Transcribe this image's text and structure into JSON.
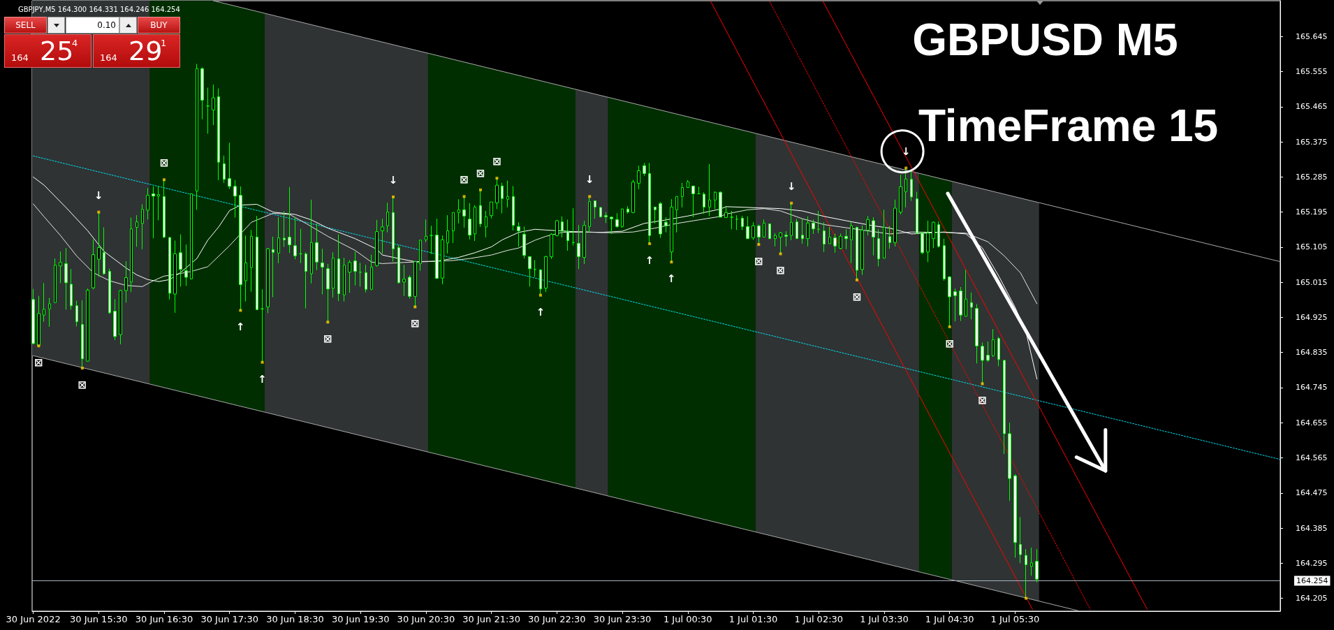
{
  "chart_data": {
    "type": "candlestick",
    "title": "GBPJPY,M5 164.300 164.331 164.246 164.254",
    "color": "#00ff00",
    "x": [
      "2022-06-30T14:30",
      "2022-06-30T14:35",
      "2022-06-30T14:40",
      "2022-06-30T14:45",
      "2022-06-30T14:50",
      "2022-06-30T14:55",
      "2022-06-30T15:00",
      "2022-06-30T15:05",
      "2022-06-30T15:10",
      "2022-06-30T15:15",
      "2022-06-30T15:20",
      "2022-06-30T15:25",
      "2022-06-30T15:30",
      "2022-06-30T15:35",
      "2022-06-30T15:40",
      "2022-06-30T15:45",
      "2022-06-30T15:50",
      "2022-06-30T15:55",
      "2022-06-30T16:00",
      "2022-06-30T16:05",
      "2022-06-30T16:10",
      "2022-06-30T16:15",
      "2022-06-30T16:20",
      "2022-06-30T16:25",
      "2022-06-30T16:30",
      "2022-06-30T16:35",
      "2022-06-30T16:40",
      "2022-06-30T16:45",
      "2022-06-30T16:50",
      "2022-06-30T16:55",
      "2022-06-30T17:00",
      "2022-06-30T17:05",
      "2022-06-30T17:10",
      "2022-06-30T17:15",
      "2022-06-30T17:20",
      "2022-06-30T17:25",
      "2022-06-30T17:30",
      "2022-06-30T17:35",
      "2022-06-30T17:40",
      "2022-06-30T17:45",
      "2022-06-30T17:50",
      "2022-06-30T17:55",
      "2022-06-30T18:00",
      "2022-06-30T18:05",
      "2022-06-30T18:10",
      "2022-06-30T18:15",
      "2022-06-30T18:20",
      "2022-06-30T18:25",
      "2022-06-30T18:30",
      "2022-06-30T18:35",
      "2022-06-30T18:40",
      "2022-06-30T18:45",
      "2022-06-30T18:50",
      "2022-06-30T18:55",
      "2022-06-30T19:00",
      "2022-06-30T19:05",
      "2022-06-30T19:10",
      "2022-06-30T19:15",
      "2022-06-30T19:20",
      "2022-06-30T19:25",
      "2022-06-30T19:30",
      "2022-06-30T19:35",
      "2022-06-30T19:40",
      "2022-06-30T19:45",
      "2022-06-30T19:50",
      "2022-06-30T19:55",
      "2022-06-30T20:00",
      "2022-06-30T20:05",
      "2022-06-30T20:10",
      "2022-06-30T20:15",
      "2022-06-30T20:20",
      "2022-06-30T20:25",
      "2022-06-30T20:30",
      "2022-06-30T20:35",
      "2022-06-30T20:40",
      "2022-06-30T20:45",
      "2022-06-30T20:50",
      "2022-06-30T20:55",
      "2022-06-30T21:00",
      "2022-06-30T21:05",
      "2022-06-30T21:10",
      "2022-06-30T21:15",
      "2022-06-30T21:20",
      "2022-06-30T21:25",
      "2022-06-30T21:30",
      "2022-06-30T21:35",
      "2022-06-30T21:40",
      "2022-06-30T21:45",
      "2022-06-30T21:50",
      "2022-06-30T21:55",
      "2022-06-30T22:00",
      "2022-06-30T22:05",
      "2022-06-30T22:10",
      "2022-06-30T22:15",
      "2022-06-30T22:20",
      "2022-06-30T22:25",
      "2022-06-30T22:30",
      "2022-06-30T22:35",
      "2022-06-30T22:40",
      "2022-06-30T22:45",
      "2022-06-30T22:50",
      "2022-06-30T22:55",
      "2022-06-30T23:00",
      "2022-06-30T23:05",
      "2022-06-30T23:10",
      "2022-06-30T23:15",
      "2022-06-30T23:20",
      "2022-06-30T23:25",
      "2022-06-30T23:30",
      "2022-06-30T23:35",
      "2022-06-30T23:40",
      "2022-06-30T23:45",
      "2022-06-30T23:50",
      "2022-06-30T23:55",
      "2022-07-01T00:00",
      "2022-07-01T00:05",
      "2022-07-01T00:10",
      "2022-07-01T00:15",
      "2022-07-01T00:20",
      "2022-07-01T00:25",
      "2022-07-01T00:30",
      "2022-07-01T00:35",
      "2022-07-01T00:40",
      "2022-07-01T00:45",
      "2022-07-01T00:50",
      "2022-07-01T00:55",
      "2022-07-01T01:00",
      "2022-07-01T01:05",
      "2022-07-01T01:10",
      "2022-07-01T01:15",
      "2022-07-01T01:20",
      "2022-07-01T01:25",
      "2022-07-01T01:30",
      "2022-07-01T01:35",
      "2022-07-01T01:40",
      "2022-07-01T01:45",
      "2022-07-01T01:50",
      "2022-07-01T01:55",
      "2022-07-01T02:00",
      "2022-07-01T02:05",
      "2022-07-01T02:10",
      "2022-07-01T02:15",
      "2022-07-01T02:20",
      "2022-07-01T02:25",
      "2022-07-01T02:30",
      "2022-07-01T02:35",
      "2022-07-01T02:40",
      "2022-07-01T02:45",
      "2022-07-01T02:50",
      "2022-07-01T02:55",
      "2022-07-01T03:00",
      "2022-07-01T03:05",
      "2022-07-01T03:10",
      "2022-07-01T03:15",
      "2022-07-01T03:20",
      "2022-07-01T03:25",
      "2022-07-01T03:30",
      "2022-07-01T03:35",
      "2022-07-01T03:40",
      "2022-07-01T03:45",
      "2022-07-01T03:50",
      "2022-07-01T03:55",
      "2022-07-01T04:00",
      "2022-07-01T04:05",
      "2022-07-01T04:10",
      "2022-07-01T04:15",
      "2022-07-01T04:20",
      "2022-07-01T04:25",
      "2022-07-01T04:30",
      "2022-07-01T04:35",
      "2022-07-01T04:40",
      "2022-07-01T04:45",
      "2022-07-01T04:50",
      "2022-07-01T04:55",
      "2022-07-01T05:00",
      "2022-07-01T05:05",
      "2022-07-01T05:10",
      "2022-07-01T05:15",
      "2022-07-01T05:20",
      "2022-07-01T05:25",
      "2022-07-01T05:30",
      "2022-07-01T05:35",
      "2022-07-01T05:40",
      "2022-07-01T05:45",
      "2022-07-01T05:50"
    ],
    "ohlc": [
      [
        164.971,
        164.998,
        164.856,
        164.858
      ],
      [
        164.854,
        164.98,
        164.852,
        164.935
      ],
      [
        164.931,
        165.013,
        164.914,
        164.946
      ],
      [
        164.947,
        164.975,
        164.901,
        164.96
      ],
      [
        164.963,
        165.076,
        164.962,
        165.059
      ],
      [
        165.057,
        165.094,
        165.013,
        165.066
      ],
      [
        165.063,
        165.103,
        164.945,
        165.014
      ],
      [
        165.01,
        165.049,
        164.945,
        164.955
      ],
      [
        164.955,
        164.968,
        164.902,
        164.914
      ],
      [
        164.907,
        164.969,
        164.795,
        164.819
      ],
      [
        164.813,
        164.999,
        164.812,
        164.995
      ],
      [
        165.001,
        165.125,
        164.997,
        165.086
      ],
      [
        165.074,
        165.195,
        165.029,
        165.104
      ],
      [
        165.091,
        165.156,
        165.034,
        165.037
      ],
      [
        165.043,
        165.05,
        164.934,
        164.937
      ],
      [
        164.941,
        164.972,
        164.867,
        164.876
      ],
      [
        164.881,
        164.996,
        164.856,
        164.994
      ],
      [
        164.994,
        165.069,
        164.963,
        165.027
      ],
      [
        165.016,
        165.181,
        164.99,
        165.152
      ],
      [
        165.156,
        165.187,
        165.106,
        165.17
      ],
      [
        165.166,
        165.215,
        165.1,
        165.202
      ],
      [
        165.2,
        165.257,
        165.176,
        165.238
      ],
      [
        165.242,
        165.261,
        165.128,
        165.236
      ],
      [
        165.236,
        165.261,
        165.174,
        165.24
      ],
      [
        165.235,
        165.278,
        165.128,
        165.131
      ],
      [
        165.13,
        165.13,
        164.971,
        164.987
      ],
      [
        164.985,
        165.122,
        164.937,
        165.088
      ],
      [
        165.091,
        165.138,
        165.004,
        165.048
      ],
      [
        165.045,
        165.112,
        165.006,
        165.028
      ],
      [
        165.024,
        165.243,
        165.022,
        165.242
      ],
      [
        165.249,
        165.575,
        165.201,
        165.563
      ],
      [
        165.563,
        165.566,
        165.433,
        165.482
      ],
      [
        165.467,
        165.514,
        165.396,
        165.467
      ],
      [
        165.457,
        165.522,
        165.418,
        165.488
      ],
      [
        165.491,
        165.512,
        165.277,
        165.323
      ],
      [
        165.319,
        165.34,
        165.27,
        165.279
      ],
      [
        165.281,
        165.373,
        165.254,
        165.261
      ],
      [
        165.261,
        165.277,
        165.181,
        165.236
      ],
      [
        165.238,
        165.261,
        164.943,
        165.009
      ],
      [
        165.019,
        165.135,
        164.966,
        165.065
      ],
      [
        165.053,
        165.149,
        164.991,
        165.133
      ],
      [
        165.131,
        165.185,
        164.945,
        164.945
      ],
      [
        164.947,
        164.997,
        164.81,
        164.947
      ],
      [
        164.952,
        165.103,
        164.936,
        165.101
      ],
      [
        165.099,
        165.132,
        164.977,
        165.092
      ],
      [
        165.09,
        165.182,
        165.064,
        165.129
      ],
      [
        165.128,
        165.197,
        165.106,
        165.124
      ],
      [
        165.131,
        165.259,
        165.09,
        165.111
      ],
      [
        165.109,
        165.182,
        165.074,
        165.083
      ],
      [
        165.088,
        165.152,
        165.064,
        165.088
      ],
      [
        165.088,
        165.092,
        164.948,
        165.043
      ],
      [
        165.037,
        165.227,
        165.012,
        165.117
      ],
      [
        165.117,
        165.166,
        165.046,
        165.067
      ],
      [
        165.065,
        165.101,
        164.984,
        165.054
      ],
      [
        165.05,
        165.062,
        164.913,
        164.998
      ],
      [
        165.0,
        165.092,
        164.976,
        165.077
      ],
      [
        165.075,
        165.138,
        164.967,
        164.986
      ],
      [
        164.983,
        165.078,
        164.966,
        165.059
      ],
      [
        165.041,
        165.072,
        164.988,
        165.066
      ],
      [
        165.07,
        165.094,
        165.007,
        165.043
      ],
      [
        165.041,
        165.065,
        165.004,
        165.041
      ],
      [
        165.04,
        165.06,
        164.989,
        164.997
      ],
      [
        164.997,
        165.086,
        164.995,
        165.054
      ],
      [
        165.058,
        165.175,
        165.055,
        165.145
      ],
      [
        165.147,
        165.178,
        165.088,
        165.157
      ],
      [
        165.16,
        165.219,
        165.143,
        165.195
      ],
      [
        165.194,
        165.234,
        165.068,
        165.101
      ],
      [
        165.104,
        165.11,
        165.012,
        165.014
      ],
      [
        165.016,
        165.06,
        164.98,
        165.023
      ],
      [
        165.028,
        165.033,
        164.973,
        164.979
      ],
      [
        164.979,
        165.07,
        164.952,
        165.068
      ],
      [
        165.063,
        165.124,
        165.045,
        165.123
      ],
      [
        165.124,
        165.176,
        165.118,
        165.133
      ],
      [
        165.135,
        165.16,
        165.087,
        165.135
      ],
      [
        165.136,
        165.178,
        165.025,
        165.025
      ],
      [
        165.026,
        165.135,
        165.01,
        165.124
      ],
      [
        165.116,
        165.187,
        165.089,
        165.147
      ],
      [
        165.147,
        165.194,
        165.116,
        165.194
      ],
      [
        165.194,
        165.228,
        165.166,
        165.201
      ],
      [
        165.201,
        165.235,
        165.155,
        165.185
      ],
      [
        165.177,
        165.218,
        165.125,
        165.136
      ],
      [
        165.139,
        165.213,
        165.121,
        165.208
      ],
      [
        165.212,
        165.252,
        165.157,
        165.165
      ],
      [
        165.157,
        165.198,
        165.13,
        165.183
      ],
      [
        165.186,
        165.221,
        165.179,
        165.221
      ],
      [
        165.219,
        165.282,
        165.203,
        165.264
      ],
      [
        165.262,
        165.27,
        165.192,
        165.23
      ],
      [
        165.228,
        165.276,
        165.207,
        165.235
      ],
      [
        165.235,
        165.262,
        165.148,
        165.161
      ],
      [
        165.158,
        165.169,
        165.106,
        165.147
      ],
      [
        165.138,
        165.158,
        165.076,
        165.084
      ],
      [
        165.081,
        165.081,
        165.004,
        165.05
      ],
      [
        165.048,
        165.072,
        165.029,
        165.048
      ],
      [
        165.047,
        165.049,
        164.982,
        164.998
      ],
      [
        165.0,
        165.083,
        164.99,
        165.081
      ],
      [
        165.081,
        165.141,
        165.075,
        165.138
      ],
      [
        165.135,
        165.175,
        165.133,
        165.173
      ],
      [
        165.17,
        165.184,
        165.13,
        165.147
      ],
      [
        165.146,
        165.176,
        165.096,
        165.122
      ],
      [
        165.117,
        165.205,
        165.109,
        165.117
      ],
      [
        165.115,
        165.162,
        165.049,
        165.081
      ],
      [
        165.079,
        165.173,
        165.062,
        165.161
      ],
      [
        165.158,
        165.235,
        165.142,
        165.222
      ],
      [
        165.224,
        165.224,
        165.178,
        165.208
      ],
      [
        165.207,
        165.207,
        165.181,
        165.183
      ],
      [
        165.186,
        165.195,
        165.167,
        165.183
      ],
      [
        165.182,
        165.184,
        165.139,
        165.178
      ],
      [
        165.176,
        165.192,
        165.155,
        165.158
      ],
      [
        165.158,
        165.204,
        165.155,
        165.203
      ],
      [
        165.203,
        165.21,
        165.191,
        165.195
      ],
      [
        165.194,
        165.278,
        165.192,
        165.272
      ],
      [
        165.269,
        165.314,
        165.254,
        165.301
      ],
      [
        165.314,
        165.321,
        165.288,
        165.294
      ],
      [
        165.294,
        165.321,
        165.114,
        165.135
      ],
      [
        165.208,
        165.208,
        165.166,
        165.201
      ],
      [
        165.217,
        165.221,
        165.129,
        165.139
      ],
      [
        165.169,
        165.182,
        165.143,
        165.16
      ],
      [
        165.093,
        165.228,
        165.067,
        165.208
      ],
      [
        165.201,
        165.235,
        165.143,
        165.235
      ],
      [
        165.235,
        165.27,
        165.207,
        165.258
      ],
      [
        165.258,
        165.277,
        165.258,
        165.273
      ],
      [
        165.262,
        165.262,
        165.182,
        165.242
      ],
      [
        165.242,
        165.26,
        165.242,
        165.242
      ],
      [
        165.241,
        165.246,
        165.191,
        165.208
      ],
      [
        165.208,
        165.318,
        165.185,
        165.226
      ],
      [
        165.226,
        165.248,
        165.203,
        165.246
      ],
      [
        165.246,
        165.248,
        165.182,
        165.182
      ],
      [
        165.181,
        165.209,
        165.181,
        165.194
      ],
      [
        165.182,
        165.198,
        165.151,
        165.182
      ],
      [
        165.177,
        165.187,
        165.149,
        165.177
      ],
      [
        165.179,
        165.185,
        165.149,
        165.158
      ],
      [
        165.158,
        165.184,
        165.127,
        165.127
      ],
      [
        165.129,
        165.169,
        165.124,
        165.16
      ],
      [
        165.16,
        165.163,
        165.112,
        165.131
      ],
      [
        165.131,
        165.176,
        165.13,
        165.167
      ],
      [
        165.165,
        165.165,
        165.126,
        165.127
      ],
      [
        165.127,
        165.141,
        165.107,
        165.135
      ],
      [
        165.131,
        165.144,
        165.088,
        165.142
      ],
      [
        165.136,
        165.146,
        165.107,
        165.133
      ],
      [
        165.135,
        165.218,
        165.123,
        165.169
      ],
      [
        165.17,
        165.178,
        165.127,
        165.127
      ],
      [
        165.136,
        165.178,
        165.114,
        165.127
      ],
      [
        165.127,
        165.184,
        165.107,
        165.167
      ],
      [
        165.167,
        165.176,
        165.139,
        165.152
      ],
      [
        165.151,
        165.198,
        165.141,
        165.151
      ],
      [
        165.147,
        165.169,
        165.093,
        165.113
      ],
      [
        165.114,
        165.157,
        165.114,
        165.131
      ],
      [
        165.129,
        165.14,
        165.091,
        165.108
      ],
      [
        165.102,
        165.14,
        165.1,
        165.133
      ],
      [
        165.133,
        165.151,
        165.1,
        165.127
      ],
      [
        165.124,
        165.17,
        165.064,
        165.16
      ],
      [
        165.156,
        165.158,
        165.021,
        165.046
      ],
      [
        165.048,
        165.161,
        165.034,
        165.149
      ],
      [
        165.149,
        165.185,
        165.135,
        165.176
      ],
      [
        165.173,
        165.182,
        165.084,
        165.131
      ],
      [
        165.127,
        165.151,
        165.056,
        165.075
      ],
      [
        165.077,
        165.201,
        165.076,
        165.156
      ],
      [
        165.132,
        165.159,
        165.101,
        165.117
      ],
      [
        165.117,
        165.227,
        165.107,
        165.205
      ],
      [
        165.195,
        165.291,
        165.189,
        165.26
      ],
      [
        165.247,
        165.308,
        165.207,
        165.28
      ],
      [
        165.279,
        165.303,
        165.224,
        165.234
      ],
      [
        165.229,
        165.247,
        165.139,
        165.141
      ],
      [
        165.141,
        165.144,
        165.087,
        165.091
      ],
      [
        165.093,
        165.173,
        165.067,
        165.141
      ],
      [
        165.127,
        165.171,
        165.103,
        165.169
      ],
      [
        165.163,
        165.171,
        165.104,
        165.107
      ],
      [
        165.109,
        165.127,
        165.019,
        165.024
      ],
      [
        165.029,
        165.031,
        164.901,
        164.978
      ],
      [
        164.991,
        164.999,
        164.915,
        164.981
      ],
      [
        164.993,
        165.003,
        164.916,
        164.931
      ],
      [
        164.928,
        165.047,
        164.927,
        164.972
      ],
      [
        164.963,
        164.989,
        164.92,
        164.951
      ],
      [
        164.948,
        164.959,
        164.807,
        164.852
      ],
      [
        164.851,
        164.861,
        164.755,
        164.815
      ],
      [
        164.828,
        164.863,
        164.811,
        164.815
      ],
      [
        164.827,
        164.895,
        164.824,
        164.868
      ],
      [
        164.871,
        164.875,
        164.8,
        164.817
      ],
      [
        164.815,
        164.815,
        164.575,
        164.627
      ],
      [
        164.627,
        164.655,
        164.455,
        164.512
      ],
      [
        164.519,
        164.523,
        164.309,
        164.348
      ],
      [
        164.343,
        164.413,
        164.295,
        164.317
      ],
      [
        164.315,
        164.331,
        164.205,
        164.291
      ],
      [
        164.287,
        164.335,
        164.263,
        164.296
      ],
      [
        164.3,
        164.331,
        164.246,
        164.254
      ]
    ],
    "series": [
      {
        "type": "line",
        "color": "#a9a9a9",
        "x": [
          "2022-06-30T17:15",
          "2022-07-01T09:33"
        ],
        "values": [
          165.737,
          165.068
        ]
      },
      {
        "type": "line",
        "color": "#a9a9a9",
        "x": [
          "2022-06-30T14:30",
          "2022-07-01T06:28"
        ],
        "values": [
          164.827,
          164.173
        ]
      },
      {
        "type": "line",
        "color": "#00e0f0",
        "line_style": "dotted",
        "x": [
          "2022-06-30T14:30",
          "2022-07-01T09:33"
        ],
        "values": [
          165.339,
          164.561
        ]
      },
      {
        "type": "line",
        "color": "#ff0000",
        "x": [
          "2022-07-01T00:51",
          "2022-07-01T05:46"
        ],
        "values": [
          165.735,
          164.176
        ]
      },
      {
        "type": "line",
        "color": "#ff0000",
        "line_style": "dotted",
        "x": [
          "2022-07-01T01:45",
          "2022-07-01T06:39"
        ],
        "values": [
          165.735,
          164.176
        ]
      },
      {
        "type": "line",
        "color": "#ff0000",
        "x": [
          "2022-07-01T02:34",
          "2022-07-01T07:31"
        ],
        "values": [
          165.735,
          164.177
        ]
      },
      {
        "type": "line",
        "color": "#ffffff",
        "x": [
          "2022-06-30T14:30",
          "2022-06-30T14:40",
          "2022-06-30T15:00",
          "2022-06-30T15:20",
          "2022-06-30T15:35",
          "2022-06-30T15:55",
          "2022-06-30T16:05",
          "2022-06-30T16:15",
          "2022-06-30T16:25",
          "2022-06-30T16:35",
          "2022-06-30T16:45",
          "2022-06-30T17:00",
          "2022-06-30T17:10",
          "2022-06-30T17:20",
          "2022-06-30T17:30",
          "2022-06-30T17:40",
          "2022-06-30T17:55",
          "2022-06-30T18:10",
          "2022-06-30T18:30",
          "2022-06-30T18:45",
          "2022-06-30T19:00",
          "2022-06-30T19:25",
          "2022-06-30T19:45",
          "2022-06-30T19:50",
          "2022-06-30T20:05",
          "2022-06-30T20:20",
          "2022-06-30T20:40",
          "2022-06-30T21:00",
          "2022-06-30T21:15",
          "2022-06-30T21:30",
          "2022-06-30T21:40",
          "2022-06-30T21:55",
          "2022-06-30T22:10",
          "2022-06-30T22:20",
          "2022-06-30T22:45",
          "2022-06-30T23:10",
          "2022-06-30T23:30",
          "2022-06-30T23:50",
          "2022-07-01T00:10",
          "2022-07-01T00:30",
          "2022-07-01T01:00",
          "2022-07-01T01:05",
          "2022-07-01T01:35",
          "2022-07-01T01:55",
          "2022-07-01T02:15",
          "2022-07-01T02:35",
          "2022-07-01T02:55",
          "2022-07-01T03:20",
          "2022-07-01T03:35",
          "2022-07-01T03:55",
          "2022-07-01T04:25",
          "2022-07-01T04:45",
          "2022-07-01T05:00",
          "2022-07-01T05:15",
          "2022-07-01T05:30",
          "2022-07-01T05:40",
          "2022-07-01T05:50"
        ],
        "values": [
          165.285,
          165.264,
          165.207,
          165.147,
          165.094,
          165.052,
          165.034,
          165.022,
          165.017,
          165.022,
          165.04,
          165.076,
          165.123,
          165.157,
          165.199,
          165.213,
          165.215,
          165.195,
          165.189,
          165.175,
          165.154,
          165.127,
          165.1,
          165.085,
          165.076,
          165.068,
          165.069,
          165.079,
          165.091,
          165.106,
          165.124,
          165.143,
          165.151,
          165.149,
          165.145,
          165.143,
          165.146,
          165.166,
          165.175,
          165.185,
          165.203,
          165.209,
          165.206,
          165.204,
          165.198,
          165.184,
          165.173,
          165.16,
          165.154,
          165.139,
          165.144,
          165.139,
          165.103,
          165.031,
          164.951,
          164.887,
          164.767
        ]
      },
      {
        "type": "line",
        "color": "#e6e6e6",
        "x": [
          "2022-06-30T14:30",
          "2022-06-30T14:40",
          "2022-06-30T14:55",
          "2022-06-30T15:10",
          "2022-06-30T15:25",
          "2022-06-30T15:40",
          "2022-06-30T15:55",
          "2022-06-30T16:10",
          "2022-06-30T16:20",
          "2022-06-30T16:30",
          "2022-06-30T16:40",
          "2022-06-30T16:55",
          "2022-06-30T17:10",
          "2022-06-30T17:30",
          "2022-06-30T17:40",
          "2022-06-30T17:50",
          "2022-06-30T18:10",
          "2022-06-30T18:25",
          "2022-06-30T18:40",
          "2022-06-30T19:00",
          "2022-06-30T19:25",
          "2022-06-30T19:40",
          "2022-06-30T19:50",
          "2022-06-30T20:10",
          "2022-06-30T20:30",
          "2022-06-30T20:55",
          "2022-06-30T21:10",
          "2022-06-30T21:30",
          "2022-06-30T21:45",
          "2022-06-30T21:55",
          "2022-06-30T22:10",
          "2022-06-30T22:20",
          "2022-06-30T22:35",
          "2022-06-30T22:55",
          "2022-06-30T23:20",
          "2022-06-30T23:40",
          "2022-07-01T00:00",
          "2022-07-01T00:20",
          "2022-07-01T00:40",
          "2022-07-01T01:00",
          "2022-07-01T01:05",
          "2022-07-01T01:25",
          "2022-07-01T01:40",
          "2022-07-01T01:55",
          "2022-07-01T02:15",
          "2022-07-01T02:35",
          "2022-07-01T02:55",
          "2022-07-01T03:20",
          "2022-07-01T03:35",
          "2022-07-01T03:55",
          "2022-07-01T04:25",
          "2022-07-01T04:45",
          "2022-07-01T05:05",
          "2022-07-01T05:20",
          "2022-07-01T05:35",
          "2022-07-01T05:50"
        ],
        "values": [
          165.216,
          165.183,
          165.135,
          165.082,
          165.04,
          165.019,
          165.007,
          165.004,
          165.019,
          165.031,
          165.035,
          165.043,
          165.055,
          165.109,
          165.139,
          165.169,
          165.192,
          165.189,
          165.166,
          165.133,
          165.097,
          165.067,
          165.063,
          165.066,
          165.068,
          165.071,
          165.076,
          165.085,
          165.097,
          165.103,
          165.123,
          165.133,
          165.143,
          165.144,
          165.142,
          165.144,
          165.154,
          165.166,
          165.175,
          165.184,
          165.19,
          165.201,
          165.204,
          165.198,
          165.178,
          165.163,
          165.155,
          165.145,
          165.139,
          165.144,
          165.143,
          165.141,
          165.119,
          165.083,
          165.039,
          164.96
        ]
      },
      {
        "type": "scatter",
        "color": "#ffcc00",
        "marker": "square",
        "x": [
          "2022-06-30T14:35",
          "2022-06-30T15:15",
          "2022-06-30T15:30",
          "2022-06-30T16:30",
          "2022-06-30T17:40",
          "2022-06-30T18:00",
          "2022-06-30T19:00",
          "2022-06-30T20:00",
          "2022-06-30T20:20",
          "2022-06-30T21:05",
          "2022-06-30T21:20",
          "2022-06-30T21:35",
          "2022-06-30T22:15",
          "2022-06-30T23:00",
          "2022-06-30T23:55",
          "2022-07-01T00:15",
          "2022-07-01T01:35",
          "2022-07-01T01:55",
          "2022-07-01T02:05",
          "2022-07-01T03:05",
          "2022-07-01T03:50",
          "2022-07-01T04:30",
          "2022-07-01T05:00",
          "2022-07-01T05:40"
        ],
        "values": [
          164.852,
          164.795,
          165.195,
          165.278,
          164.943,
          164.81,
          164.913,
          165.234,
          164.952,
          165.235,
          165.252,
          165.282,
          164.982,
          165.235,
          165.114,
          165.067,
          165.112,
          165.088,
          165.218,
          165.021,
          165.308,
          164.901,
          164.755,
          164.205
        ]
      }
    ],
    "xlim": [
      "2022-06-30T14:29",
      "2022-07-01T09:33"
    ],
    "xticks": [
      {
        "value": "2022-06-30T14:30",
        "label": "30 Jun 2022"
      },
      {
        "value": "2022-06-30T15:30",
        "label": "30 Jun 15:30"
      },
      {
        "value": "2022-06-30T16:30",
        "label": "30 Jun 16:30"
      },
      {
        "value": "2022-06-30T17:30",
        "label": "30 Jun 17:30"
      },
      {
        "value": "2022-06-30T18:30",
        "label": "30 Jun 18:30"
      },
      {
        "value": "2022-06-30T19:30",
        "label": "30 Jun 19:30"
      },
      {
        "value": "2022-06-30T20:30",
        "label": "30 Jun 20:30"
      },
      {
        "value": "2022-06-30T21:30",
        "label": "30 Jun 21:30"
      },
      {
        "value": "2022-06-30T22:30",
        "label": "30 Jun 22:30"
      },
      {
        "value": "2022-06-30T23:30",
        "label": "30 Jun 23:30"
      },
      {
        "value": "2022-07-01T00:30",
        "label": "1 Jul 00:30"
      },
      {
        "value": "2022-07-01T01:30",
        "label": "1 Jul 01:30"
      },
      {
        "value": "2022-07-01T02:30",
        "label": "1 Jul 02:30"
      },
      {
        "value": "2022-07-01T03:30",
        "label": "1 Jul 03:30"
      },
      {
        "value": "2022-07-01T04:30",
        "label": "1 Jul 04:30"
      },
      {
        "value": "2022-07-01T05:30",
        "label": "1 Jul 05:30"
      }
    ],
    "ylim": [
      164.172,
      165.737
    ],
    "yticks": [
      164.205,
      164.295,
      164.385,
      164.475,
      164.565,
      164.655,
      164.745,
      164.835,
      164.925,
      165.015,
      165.105,
      165.195,
      165.285,
      165.375,
      165.465,
      165.555,
      165.645
    ],
    "ref_lines": [
      {
        "axis": "y",
        "value": 164.254,
        "label": "164.254",
        "color": "#a7b3c0"
      }
    ],
    "bands": [
      {
        "axis": "x",
        "from": "2022-06-30T14:29",
        "to": "2022-06-30T16:17",
        "color": "#2f3333"
      },
      {
        "axis": "x",
        "from": "2022-06-30T16:17",
        "to": "2022-06-30T18:02",
        "color": "#002e00"
      },
      {
        "axis": "x",
        "from": "2022-06-30T18:02",
        "to": "2022-06-30T20:32",
        "color": "#2f3333"
      },
      {
        "axis": "x",
        "from": "2022-06-30T20:32",
        "to": "2022-06-30T22:47",
        "color": "#002e00"
      },
      {
        "axis": "x",
        "from": "2022-06-30T22:47",
        "to": "2022-06-30T23:17",
        "color": "#2f3333"
      },
      {
        "axis": "x",
        "from": "2022-06-30T23:17",
        "to": "2022-07-01T01:32",
        "color": "#002e00"
      },
      {
        "axis": "x",
        "from": "2022-07-01T01:32",
        "to": "2022-07-01T04:02",
        "color": "#2f3333"
      },
      {
        "axis": "x",
        "from": "2022-07-01T04:02",
        "to": "2022-07-01T04:32",
        "color": "#002e00"
      },
      {
        "axis": "x",
        "from": "2022-07-01T04:32",
        "to": "2022-07-01T05:52",
        "color": "#2f3333"
      }
    ],
    "annotations": [
      "SELL",
      "0.10",
      "BUY",
      "164 25$^{4}$",
      "164 29$^{1}$",
      "GBPUSD M5",
      "TimeFrame 15",
      {
        "text": "↓",
        "x": "2022-06-30T15:30",
        "y": 165.195
      },
      {
        "text": "↓",
        "x": "2022-06-30T20:00",
        "y": 165.234
      },
      {
        "text": "↓",
        "x": "2022-06-30T23:00",
        "y": 165.235
      },
      {
        "text": "↓",
        "x": "2022-07-01T02:05",
        "y": 165.218
      },
      {
        "text": "↓",
        "x": "2022-07-01T03:50",
        "y": 165.308
      },
      {
        "text": "↑",
        "x": "2022-06-30T17:40",
        "y": 164.943
      },
      {
        "text": "↑",
        "x": "2022-06-30T18:00",
        "y": 164.81
      },
      {
        "text": "↑",
        "x": "2022-06-30T22:15",
        "y": 164.982
      },
      {
        "text": "↑",
        "x": "2022-06-30T23:55",
        "y": 165.114
      },
      {
        "text": "↑",
        "x": "2022-07-01T00:15",
        "y": 165.067
      },
      {
        "text": "⊠",
        "x": "2022-06-30T16:30",
        "y": 165.278
      },
      {
        "text": "⊠",
        "x": "2022-06-30T14:35",
        "y": 164.852
      },
      {
        "text": "⊠",
        "x": "2022-06-30T15:15",
        "y": 164.795
      },
      {
        "text": "⊠",
        "x": "2022-06-30T19:00",
        "y": 164.913
      },
      {
        "text": "⊠",
        "x": "2022-06-30T20:20",
        "y": 164.952
      },
      {
        "text": "⊠",
        "x": "2022-06-30T21:05",
        "y": 165.235
      },
      {
        "text": "⊠",
        "x": "2022-06-30T21:20",
        "y": 165.252
      },
      {
        "text": "⊠",
        "x": "2022-06-30T21:35",
        "y": 165.282
      },
      {
        "text": "⊠",
        "x": "2022-07-01T01:35",
        "y": 165.112
      },
      {
        "text": "⊠",
        "x": "2022-07-01T01:55",
        "y": 165.088
      },
      {
        "text": "⊠",
        "x": "2022-07-01T03:05",
        "y": 165.021
      },
      {
        "text": "⊠",
        "x": "2022-07-01T04:30",
        "y": 164.901
      },
      {
        "text": "⊠",
        "x": "2022-07-01T05:00",
        "y": 164.755
      }
    ]
  }
}
